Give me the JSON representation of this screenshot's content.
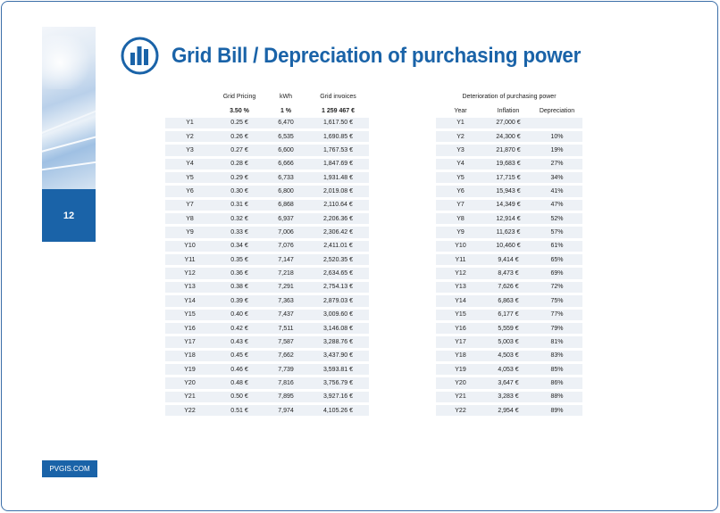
{
  "title": "Grid Bill / Depreciation of purchasing power",
  "page_number": "12",
  "footer": "PVGIS.COM",
  "icon": "bar-chart-circle-icon",
  "colors": {
    "brand": "#1a63a8",
    "row_bg": "#edf1f6"
  },
  "left_table": {
    "headers": [
      "",
      "Grid Pricing",
      "kWh",
      "Grid invoices"
    ],
    "subheaders": [
      "",
      "3.50 %",
      "1 %",
      "1 259 467 €"
    ],
    "rows": [
      [
        "Y1",
        "0.25 €",
        "6,470",
        "1,617.50 €"
      ],
      [
        "Y2",
        "0.26 €",
        "6,535",
        "1,690.85 €"
      ],
      [
        "Y3",
        "0.27 €",
        "6,600",
        "1,767.53 €"
      ],
      [
        "Y4",
        "0.28 €",
        "6,666",
        "1,847.69 €"
      ],
      [
        "Y5",
        "0.29 €",
        "6,733",
        "1,931.48 €"
      ],
      [
        "Y6",
        "0.30 €",
        "6,800",
        "2,019.08 €"
      ],
      [
        "Y7",
        "0.31 €",
        "6,868",
        "2,110.64 €"
      ],
      [
        "Y8",
        "0.32 €",
        "6,937",
        "2,206.36 €"
      ],
      [
        "Y9",
        "0.33 €",
        "7,006",
        "2,306.42 €"
      ],
      [
        "Y10",
        "0.34 €",
        "7,076",
        "2,411.01 €"
      ],
      [
        "Y11",
        "0.35 €",
        "7,147",
        "2,520.35 €"
      ],
      [
        "Y12",
        "0.36 €",
        "7,218",
        "2,634.65 €"
      ],
      [
        "Y13",
        "0.38 €",
        "7,291",
        "2,754.13 €"
      ],
      [
        "Y14",
        "0.39 €",
        "7,363",
        "2,879.03 €"
      ],
      [
        "Y15",
        "0.40 €",
        "7,437",
        "3,009.60 €"
      ],
      [
        "Y16",
        "0.42 €",
        "7,511",
        "3,146.08 €"
      ],
      [
        "Y17",
        "0.43 €",
        "7,587",
        "3,288.76 €"
      ],
      [
        "Y18",
        "0.45 €",
        "7,662",
        "3,437.90 €"
      ],
      [
        "Y19",
        "0.46 €",
        "7,739",
        "3,593.81 €"
      ],
      [
        "Y20",
        "0.48 €",
        "7,816",
        "3,756.79 €"
      ],
      [
        "Y21",
        "0.50 €",
        "7,895",
        "3,927.16 €"
      ],
      [
        "Y22",
        "0.51 €",
        "7,974",
        "4,105.26 €"
      ]
    ]
  },
  "right_table": {
    "caption": "Deterioration of purchasing power",
    "headers": [
      "Year",
      "Inflation",
      "Depreciation"
    ],
    "rows": [
      [
        "Y1",
        "27,000 €",
        ""
      ],
      [
        "Y2",
        "24,300 €",
        "10%"
      ],
      [
        "Y3",
        "21,870 €",
        "19%"
      ],
      [
        "Y4",
        "19,683 €",
        "27%"
      ],
      [
        "Y5",
        "17,715 €",
        "34%"
      ],
      [
        "Y6",
        "15,943 €",
        "41%"
      ],
      [
        "Y7",
        "14,349 €",
        "47%"
      ],
      [
        "Y8",
        "12,914 €",
        "52%"
      ],
      [
        "Y9",
        "11,623 €",
        "57%"
      ],
      [
        "Y10",
        "10,460 €",
        "61%"
      ],
      [
        "Y11",
        "9,414 €",
        "65%"
      ],
      [
        "Y12",
        "8,473 €",
        "69%"
      ],
      [
        "Y13",
        "7,626 €",
        "72%"
      ],
      [
        "Y14",
        "6,863 €",
        "75%"
      ],
      [
        "Y15",
        "6,177 €",
        "77%"
      ],
      [
        "Y16",
        "5,559 €",
        "79%"
      ],
      [
        "Y17",
        "5,003 €",
        "81%"
      ],
      [
        "Y18",
        "4,503 €",
        "83%"
      ],
      [
        "Y19",
        "4,053 €",
        "85%"
      ],
      [
        "Y20",
        "3,647 €",
        "86%"
      ],
      [
        "Y21",
        "3,283 €",
        "88%"
      ],
      [
        "Y22",
        "2,954 €",
        "89%"
      ]
    ]
  }
}
